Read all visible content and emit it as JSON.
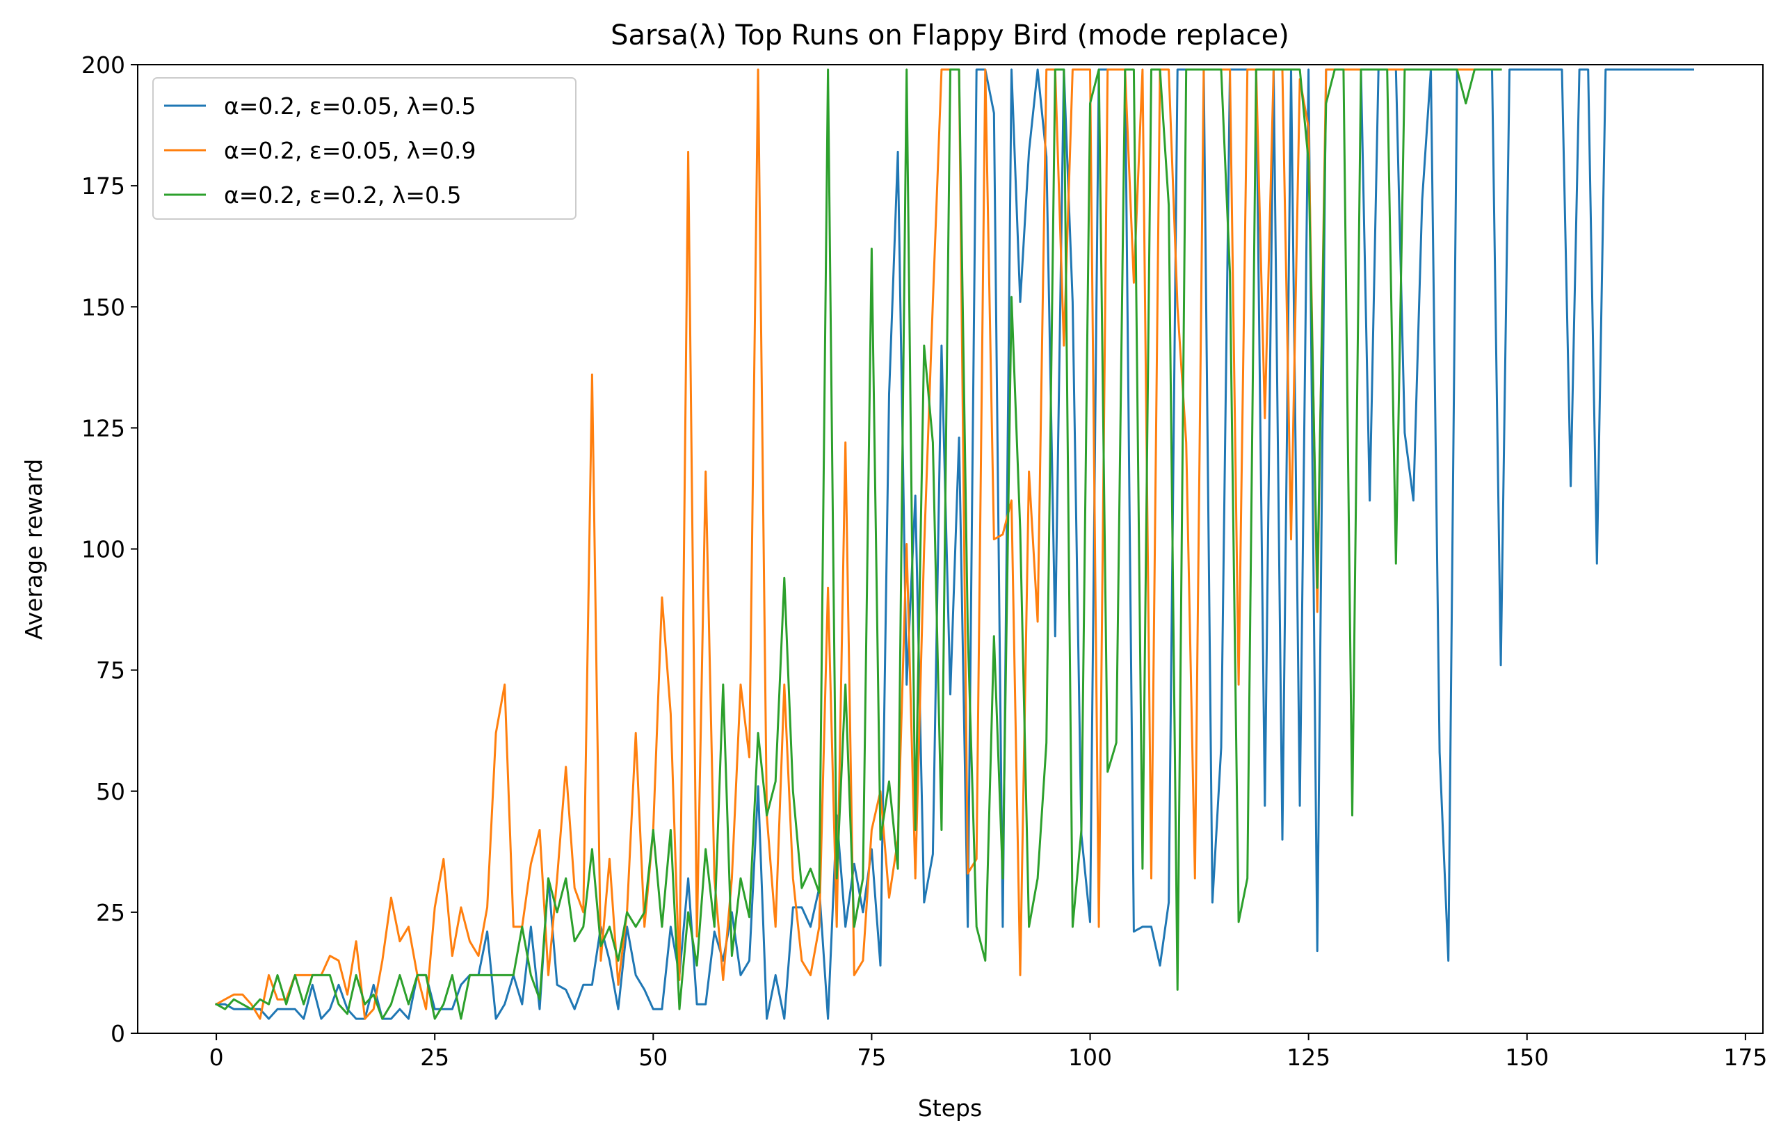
{
  "chart_data": {
    "type": "line",
    "title": "Sarsa(λ) Top Runs on Flappy Bird (mode replace)",
    "xlabel": "Steps",
    "ylabel": "Average reward",
    "xlim": [
      -9,
      177
    ],
    "ylim": [
      0,
      200
    ],
    "xticks": [
      0,
      25,
      50,
      75,
      100,
      125,
      150,
      175
    ],
    "yticks": [
      0,
      25,
      50,
      75,
      100,
      125,
      150,
      175,
      200
    ],
    "grid": false,
    "legend_position": "top-left",
    "series": [
      {
        "name": "α=0.2, ε=0.05, λ=0.5",
        "color": "#1f77b4",
        "x": [
          0,
          1,
          2,
          3,
          4,
          5,
          6,
          7,
          8,
          9,
          10,
          11,
          12,
          13,
          14,
          15,
          16,
          17,
          18,
          19,
          20,
          21,
          22,
          23,
          24,
          25,
          26,
          27,
          28,
          29,
          30,
          31,
          32,
          33,
          34,
          35,
          36,
          37,
          38,
          39,
          40,
          41,
          42,
          43,
          44,
          45,
          46,
          47,
          48,
          49,
          50,
          51,
          52,
          53,
          54,
          55,
          56,
          57,
          58,
          59,
          60,
          61,
          62,
          63,
          64,
          65,
          66,
          67,
          68,
          69,
          70,
          71,
          72,
          73,
          74,
          75,
          76,
          77,
          78,
          79,
          80,
          81,
          82,
          83,
          84,
          85,
          86,
          87,
          88,
          89,
          90,
          91,
          92,
          93,
          94,
          95,
          96,
          97,
          98,
          99,
          100,
          101,
          102,
          103,
          104,
          105,
          106,
          107,
          108,
          109,
          110,
          111,
          112,
          113,
          114,
          115,
          116,
          117,
          118,
          119,
          120,
          121,
          122,
          123,
          124,
          125,
          126,
          127,
          128,
          129,
          130,
          131,
          132,
          133,
          134,
          135,
          136,
          137,
          138,
          139,
          140,
          141,
          142,
          143,
          144,
          145,
          146,
          147,
          148,
          149,
          150,
          151,
          152,
          153,
          154,
          155,
          156,
          157,
          158,
          159,
          160,
          161,
          162,
          163,
          164,
          165,
          166,
          167,
          168,
          169
        ],
        "y": [
          6,
          6,
          5,
          5,
          5,
          5,
          3,
          5,
          5,
          5,
          3,
          10,
          3,
          5,
          10,
          5,
          3,
          3,
          10,
          3,
          3,
          5,
          3,
          12,
          12,
          5,
          5,
          5,
          10,
          12,
          12,
          21,
          3,
          6,
          12,
          6,
          22,
          5,
          32,
          10,
          9,
          5,
          10,
          10,
          22,
          15,
          5,
          22,
          12,
          9,
          5,
          5,
          22,
          12,
          32,
          6,
          6,
          21,
          15,
          25,
          12,
          15,
          51,
          3,
          12,
          3,
          26,
          26,
          22,
          30,
          3,
          45,
          22,
          35,
          25,
          38,
          14,
          132,
          182,
          72,
          111,
          27,
          37,
          142,
          70,
          123,
          22,
          199,
          199,
          190,
          22,
          199,
          151,
          182,
          199,
          181,
          82,
          199,
          151,
          41,
          23,
          199,
          199,
          199,
          199,
          21,
          22,
          22,
          14,
          27,
          199,
          199,
          199,
          199,
          27,
          59,
          199,
          199,
          199,
          199,
          47,
          199,
          40,
          199,
          47,
          199,
          17,
          199,
          199,
          199,
          199,
          199,
          110,
          199,
          199,
          199,
          124,
          110,
          172,
          199,
          58,
          15,
          199,
          199,
          199,
          199,
          199,
          76,
          199,
          199,
          199,
          199,
          199,
          199,
          199,
          113,
          199,
          199,
          97,
          199,
          199,
          199,
          199,
          199,
          199,
          199,
          199,
          199,
          199,
          199
        ]
      },
      {
        "name": "α=0.2, ε=0.05, λ=0.9",
        "color": "#ff7f0e",
        "x": [
          0,
          1,
          2,
          3,
          4,
          5,
          6,
          7,
          8,
          9,
          10,
          11,
          12,
          13,
          14,
          15,
          16,
          17,
          18,
          19,
          20,
          21,
          22,
          23,
          24,
          25,
          26,
          27,
          28,
          29,
          30,
          31,
          32,
          33,
          34,
          35,
          36,
          37,
          38,
          39,
          40,
          41,
          42,
          43,
          44,
          45,
          46,
          47,
          48,
          49,
          50,
          51,
          52,
          53,
          54,
          55,
          56,
          57,
          58,
          59,
          60,
          61,
          62,
          63,
          64,
          65,
          66,
          67,
          68,
          69,
          70,
          71,
          72,
          73,
          74,
          75,
          76,
          77,
          78,
          79,
          80,
          81,
          82,
          83,
          84,
          85,
          86,
          87,
          88,
          89,
          90,
          91,
          92,
          93,
          94,
          95,
          96,
          97,
          98,
          99,
          100,
          101,
          102,
          103,
          104,
          105,
          106,
          107,
          108,
          109,
          110,
          111,
          112,
          113,
          114,
          115,
          116,
          117,
          118,
          119,
          120,
          121,
          122,
          123,
          124,
          125,
          126,
          127,
          128,
          129,
          130,
          131,
          132,
          133,
          134,
          135,
          136,
          137,
          138,
          139,
          140,
          141,
          142,
          143,
          144,
          145,
          146
        ],
        "y": [
          6,
          7,
          8,
          8,
          6,
          3,
          12,
          7,
          7,
          12,
          12,
          12,
          12,
          16,
          15,
          8,
          19,
          3,
          5,
          15,
          28,
          19,
          22,
          12,
          5,
          26,
          36,
          16,
          26,
          19,
          16,
          26,
          62,
          72,
          22,
          22,
          35,
          42,
          12,
          32,
          55,
          30,
          25,
          136,
          15,
          36,
          10,
          25,
          62,
          22,
          42,
          90,
          66,
          11,
          182,
          20,
          116,
          32,
          11,
          32,
          72,
          57,
          199,
          45,
          22,
          72,
          32,
          15,
          12,
          22,
          92,
          22,
          122,
          12,
          15,
          42,
          50,
          28,
          40,
          101,
          32,
          100,
          151,
          199,
          199,
          199,
          33,
          36,
          199,
          102,
          103,
          110,
          12,
          116,
          85,
          199,
          199,
          142,
          199,
          199,
          199,
          22,
          199,
          199,
          199,
          155,
          199,
          32,
          199,
          199,
          150,
          122,
          32,
          199,
          199,
          199,
          199,
          72,
          199,
          199,
          127,
          199,
          199,
          102,
          197,
          187,
          87,
          199,
          199,
          199,
          199,
          199,
          199,
          199,
          199,
          199,
          199,
          199,
          199,
          199,
          199,
          199,
          199,
          199,
          199,
          199,
          199
        ]
      },
      {
        "name": "α=0.2, ε=0.2, λ=0.5",
        "color": "#2ca02c",
        "x": [
          0,
          1,
          2,
          3,
          4,
          5,
          6,
          7,
          8,
          9,
          10,
          11,
          12,
          13,
          14,
          15,
          16,
          17,
          18,
          19,
          20,
          21,
          22,
          23,
          24,
          25,
          26,
          27,
          28,
          29,
          30,
          31,
          32,
          33,
          34,
          35,
          36,
          37,
          38,
          39,
          40,
          41,
          42,
          43,
          44,
          45,
          46,
          47,
          48,
          49,
          50,
          51,
          52,
          53,
          54,
          55,
          56,
          57,
          58,
          59,
          60,
          61,
          62,
          63,
          64,
          65,
          66,
          67,
          68,
          69,
          70,
          71,
          72,
          73,
          74,
          75,
          76,
          77,
          78,
          79,
          80,
          81,
          82,
          83,
          84,
          85,
          86,
          87,
          88,
          89,
          90,
          91,
          92,
          93,
          94,
          95,
          96,
          97,
          98,
          99,
          100,
          101,
          102,
          103,
          104,
          105,
          106,
          107,
          108,
          109,
          110,
          111,
          112,
          113,
          114,
          115,
          116,
          117,
          118,
          119,
          120,
          121,
          122,
          123,
          124,
          125,
          126,
          127,
          128,
          129,
          130,
          131,
          132,
          133,
          134,
          135,
          136,
          137,
          138,
          139,
          140,
          141,
          142,
          143,
          144,
          145,
          146,
          147
        ],
        "y": [
          6,
          5,
          7,
          6,
          5,
          7,
          6,
          12,
          6,
          12,
          6,
          12,
          12,
          12,
          6,
          4,
          12,
          6,
          8,
          3,
          6,
          12,
          6,
          12,
          12,
          3,
          6,
          12,
          3,
          12,
          12,
          12,
          12,
          12,
          12,
          22,
          12,
          7,
          32,
          25,
          32,
          19,
          22,
          38,
          18,
          22,
          15,
          25,
          22,
          25,
          42,
          22,
          42,
          5,
          25,
          14,
          38,
          22,
          72,
          16,
          32,
          24,
          62,
          45,
          52,
          94,
          50,
          30,
          34,
          29,
          199,
          32,
          72,
          22,
          32,
          162,
          40,
          52,
          34,
          199,
          42,
          142,
          122,
          42,
          199,
          199,
          83,
          22,
          15,
          82,
          32,
          152,
          104,
          22,
          32,
          60,
          199,
          199,
          22,
          42,
          192,
          199,
          54,
          60,
          199,
          199,
          34,
          199,
          199,
          171,
          9,
          199,
          199,
          199,
          199,
          199,
          157,
          23,
          32,
          199,
          199,
          199,
          199,
          199,
          199,
          180,
          92,
          192,
          199,
          199,
          45,
          199,
          199,
          199,
          199,
          97,
          199,
          199,
          199,
          199,
          199,
          199,
          199,
          192,
          199,
          199,
          199,
          199
        ]
      }
    ]
  }
}
